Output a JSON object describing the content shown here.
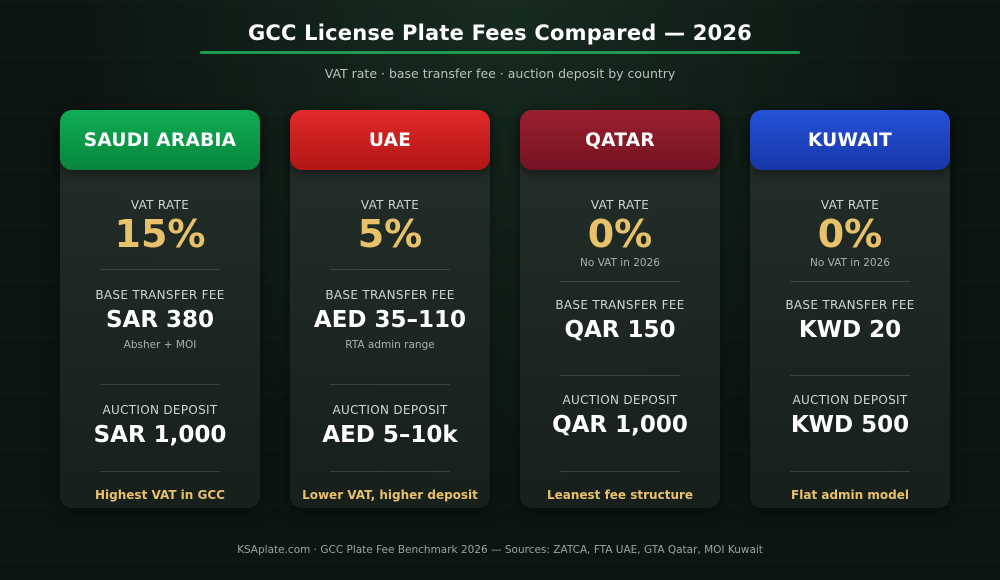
{
  "header": {
    "title": "GCC License Plate Fees Compared — 2026",
    "subtitle": "VAT rate · base transfer fee · auction deposit by country"
  },
  "labels": {
    "vat": "VAT RATE",
    "transfer": "BASE TRANSFER FEE",
    "deposit": "AUCTION DEPOSIT"
  },
  "colors": {
    "accent_gold": "#e8c26a",
    "saudi": "#0a9a48",
    "uae": "#cc1c1c",
    "qatar": "#8a1a2a",
    "kuwait": "#1c44c4"
  },
  "cards": [
    {
      "country": "SAUDI ARABIA",
      "vat": "15%",
      "vat_note": "",
      "transfer": "SAR 380",
      "transfer_note": "Absher + MOI",
      "deposit": "SAR 1,000",
      "footer": "Highest VAT in GCC"
    },
    {
      "country": "UAE",
      "vat": "5%",
      "vat_note": "",
      "transfer": "AED 35–110",
      "transfer_note": "RTA admin range",
      "deposit": "AED 5–10k",
      "footer": "Lower VAT, higher deposit"
    },
    {
      "country": "QATAR",
      "vat": "0%",
      "vat_note": "No VAT in 2026",
      "transfer": "QAR 150",
      "transfer_note": "",
      "deposit": "QAR 1,000",
      "footer": "Leanest fee structure"
    },
    {
      "country": "KUWAIT",
      "vat": "0%",
      "vat_note": "No VAT in 2026",
      "transfer": "KWD 20",
      "transfer_note": "",
      "deposit": "KWD 500",
      "footer": "Flat admin model"
    }
  ],
  "footer": "KSAplate.com · GCC Plate Fee Benchmark 2026 — Sources: ZATCA, FTA UAE, GTA Qatar, MOI Kuwait"
}
